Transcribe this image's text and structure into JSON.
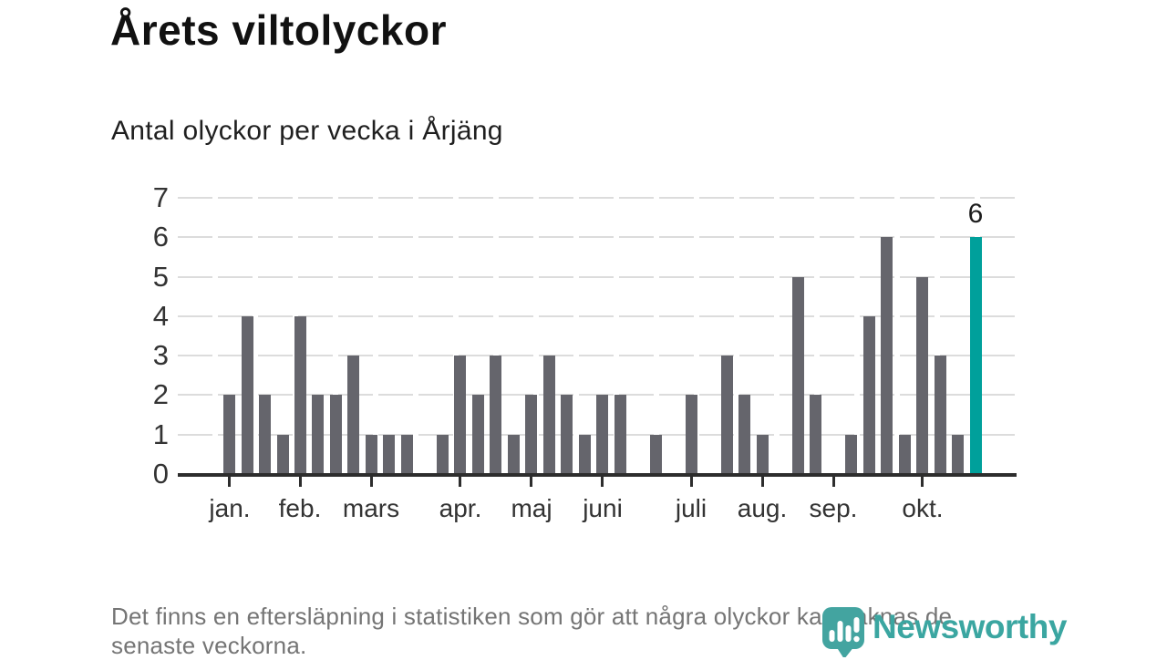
{
  "page": {
    "title": "Årets viltolyckor",
    "subtitle": "Antal olyckor per vecka i Årjäng",
    "footer": {
      "line1": "Det finns en eftersläpning i statistiken som gör att några olyckor kan saknas de",
      "line2": "senaste veckorna."
    }
  },
  "branding": {
    "name": "Newsworthy",
    "icon": "newsworthy-pin-bar-chart-icon",
    "color": "#3BA6A1"
  },
  "chart_data": {
    "type": "bar",
    "title": "Årets viltolyckor",
    "subtitle": "Antal olyckor per vecka i Årjäng",
    "xlabel": "",
    "ylabel": "",
    "x_unit": "week-of-year",
    "first_week": 1,
    "n_weeks": 43,
    "values": [
      2,
      4,
      2,
      1,
      4,
      2,
      2,
      3,
      1,
      1,
      1,
      0,
      1,
      3,
      2,
      3,
      1,
      2,
      3,
      2,
      1,
      2,
      2,
      0,
      1,
      0,
      2,
      0,
      3,
      2,
      1,
      0,
      5,
      2,
      0,
      1,
      4,
      6,
      1,
      5,
      3,
      1,
      6
    ],
    "month_ticks": [
      {
        "label": "jan.",
        "week": 1
      },
      {
        "label": "feb.",
        "week": 5
      },
      {
        "label": "mars",
        "week": 9
      },
      {
        "label": "apr.",
        "week": 14
      },
      {
        "label": "maj",
        "week": 18
      },
      {
        "label": "juni",
        "week": 22
      },
      {
        "label": "juli",
        "week": 27
      },
      {
        "label": "aug.",
        "week": 31
      },
      {
        "label": "sep.",
        "week": 35
      },
      {
        "label": "okt.",
        "week": 40
      }
    ],
    "y_ticks": [
      0,
      1,
      2,
      3,
      4,
      5,
      6,
      7
    ],
    "ylim": [
      0,
      7
    ],
    "grid": "horizontal-dashed",
    "legend": "none",
    "bar_color": "#65656C",
    "highlight_color": "#00A09B",
    "highlight_index": 42,
    "annotation": {
      "text": "6",
      "week": 43
    }
  }
}
